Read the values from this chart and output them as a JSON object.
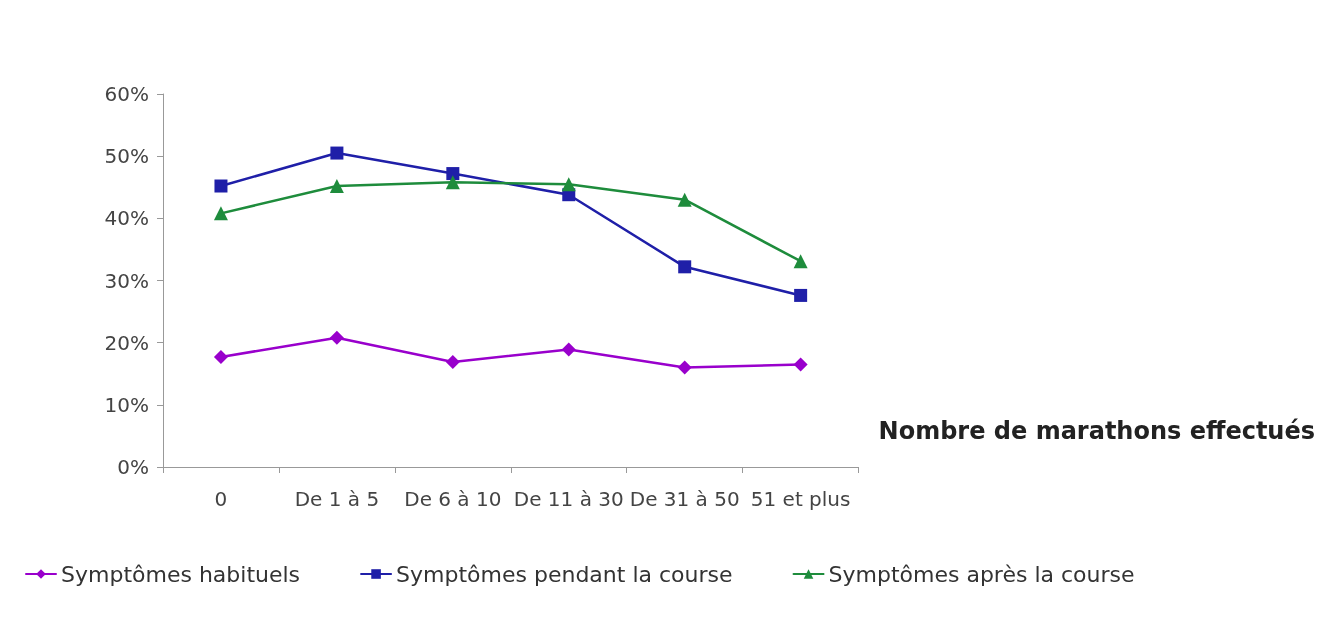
{
  "chart_data": {
    "type": "line",
    "xlabel": "Nombre de marathons effectués",
    "categories": [
      "0",
      "De 1 à 5",
      "De 6 à 10",
      "De 11 à 30",
      "De 31 à 50",
      "51 et plus"
    ],
    "series": [
      {
        "name": "Symptômes habituels",
        "color": "#9900cc",
        "marker": "diamond",
        "values": [
          17.7,
          20.8,
          16.9,
          18.9,
          16.0,
          16.5
        ]
      },
      {
        "name": "Symptômes pendant la course",
        "color": "#1f1fa8",
        "marker": "square",
        "values": [
          45.2,
          50.5,
          47.2,
          43.8,
          32.2,
          27.6
        ]
      },
      {
        "name": "Symptômes après la course",
        "color": "#1e8c3c",
        "marker": "triangle",
        "values": [
          40.8,
          45.2,
          45.8,
          45.5,
          43.0,
          33.1
        ]
      }
    ],
    "ylim": [
      0,
      60
    ],
    "yticks": [
      {
        "value": 0,
        "label": "0%"
      },
      {
        "value": 10,
        "label": "10%"
      },
      {
        "value": 20,
        "label": "20%"
      },
      {
        "value": 30,
        "label": "30%"
      },
      {
        "value": 40,
        "label": "40%"
      },
      {
        "value": 50,
        "label": "50%"
      },
      {
        "value": 60,
        "label": "60%"
      }
    ],
    "grid": false,
    "legend": "bottom",
    "line_style": "solid"
  }
}
